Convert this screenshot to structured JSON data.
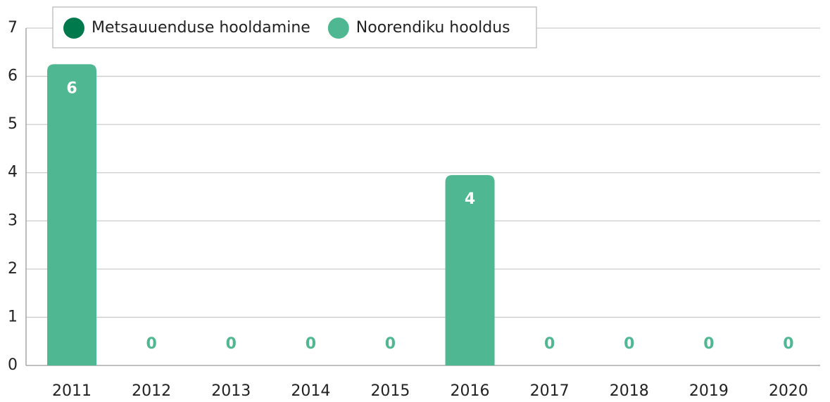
{
  "chart_data": {
    "type": "bar",
    "stacked": true,
    "categories": [
      "2011",
      "2012",
      "2013",
      "2014",
      "2015",
      "2016",
      "2017",
      "2018",
      "2019",
      "2020"
    ],
    "series": [
      {
        "name": "Metsauuenduse hooldamine",
        "color": "#007a4d",
        "values": [
          0,
          0,
          0,
          0,
          0,
          0,
          0,
          0,
          0,
          0
        ]
      },
      {
        "name": "Noorendiku hooldus",
        "color": "#4fb791",
        "values": [
          6.25,
          0,
          0,
          0,
          0,
          3.95,
          0,
          0,
          0,
          0
        ],
        "value_labels": [
          "6",
          "0",
          "0",
          "0",
          "0",
          "4",
          "0",
          "0",
          "0",
          "0"
        ]
      }
    ],
    "ylim": [
      0,
      7
    ],
    "yticks": [
      0,
      1,
      2,
      3,
      4,
      5,
      6,
      7
    ],
    "grid": true,
    "legend": "top-left"
  }
}
